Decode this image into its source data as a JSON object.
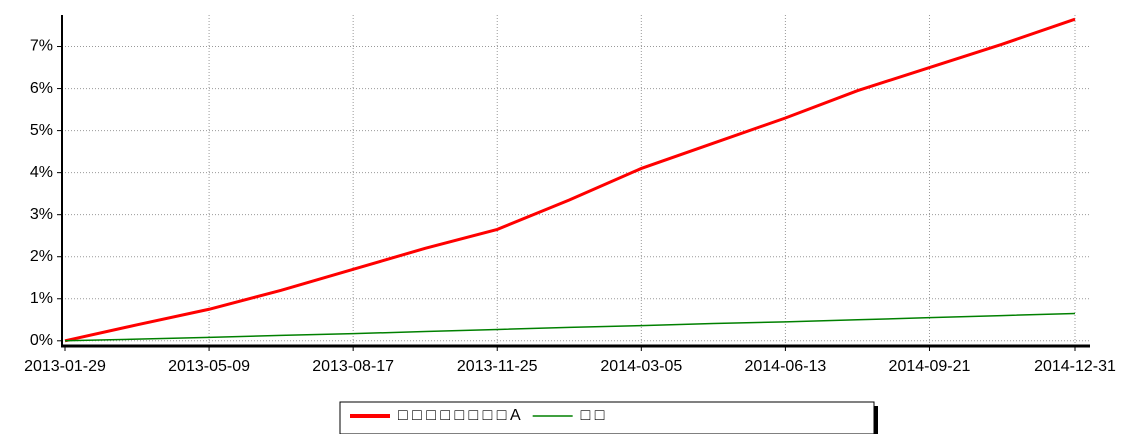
{
  "chart_data": {
    "type": "line",
    "x": [
      "2013-01-29",
      "2013-03-20",
      "2013-05-09",
      "2013-06-28",
      "2013-08-17",
      "2013-10-06",
      "2013-11-25",
      "2014-01-14",
      "2014-03-05",
      "2014-04-24",
      "2014-06-13",
      "2014-08-02",
      "2014-09-21",
      "2014-11-10",
      "2014-12-31"
    ],
    "series": [
      {
        "name": "□ □ □ □ □ □ □ □ A",
        "color": "#ff0000",
        "values": [
          0,
          0.38,
          0.75,
          1.2,
          1.7,
          2.2,
          2.65,
          3.35,
          4.1,
          4.7,
          5.3,
          5.95,
          6.5,
          7.05,
          7.65
        ]
      },
      {
        "name": "□ □",
        "color": "#008000",
        "values": [
          0,
          0.04,
          0.08,
          0.13,
          0.17,
          0.22,
          0.27,
          0.32,
          0.36,
          0.41,
          0.45,
          0.5,
          0.55,
          0.6,
          0.65
        ]
      }
    ],
    "xlim": [
      "2013-01-29",
      "2014-12-31"
    ],
    "xticks": [
      "2013-01-29",
      "2013-05-09",
      "2013-08-17",
      "2013-11-25",
      "2014-03-05",
      "2014-06-13",
      "2014-09-21",
      "2014-12-31"
    ],
    "ylim": [
      -0.1,
      7.75
    ],
    "yticks": [
      {
        "value": 0,
        "label": "0%"
      },
      {
        "value": 1,
        "label": "1%"
      },
      {
        "value": 2,
        "label": "2%"
      },
      {
        "value": 3,
        "label": "3%"
      },
      {
        "value": 4,
        "label": "4%"
      },
      {
        "value": 5,
        "label": "5%"
      },
      {
        "value": 6,
        "label": "6%"
      },
      {
        "value": 7,
        "label": "7%"
      }
    ],
    "grid": true,
    "legend": "bottom"
  }
}
